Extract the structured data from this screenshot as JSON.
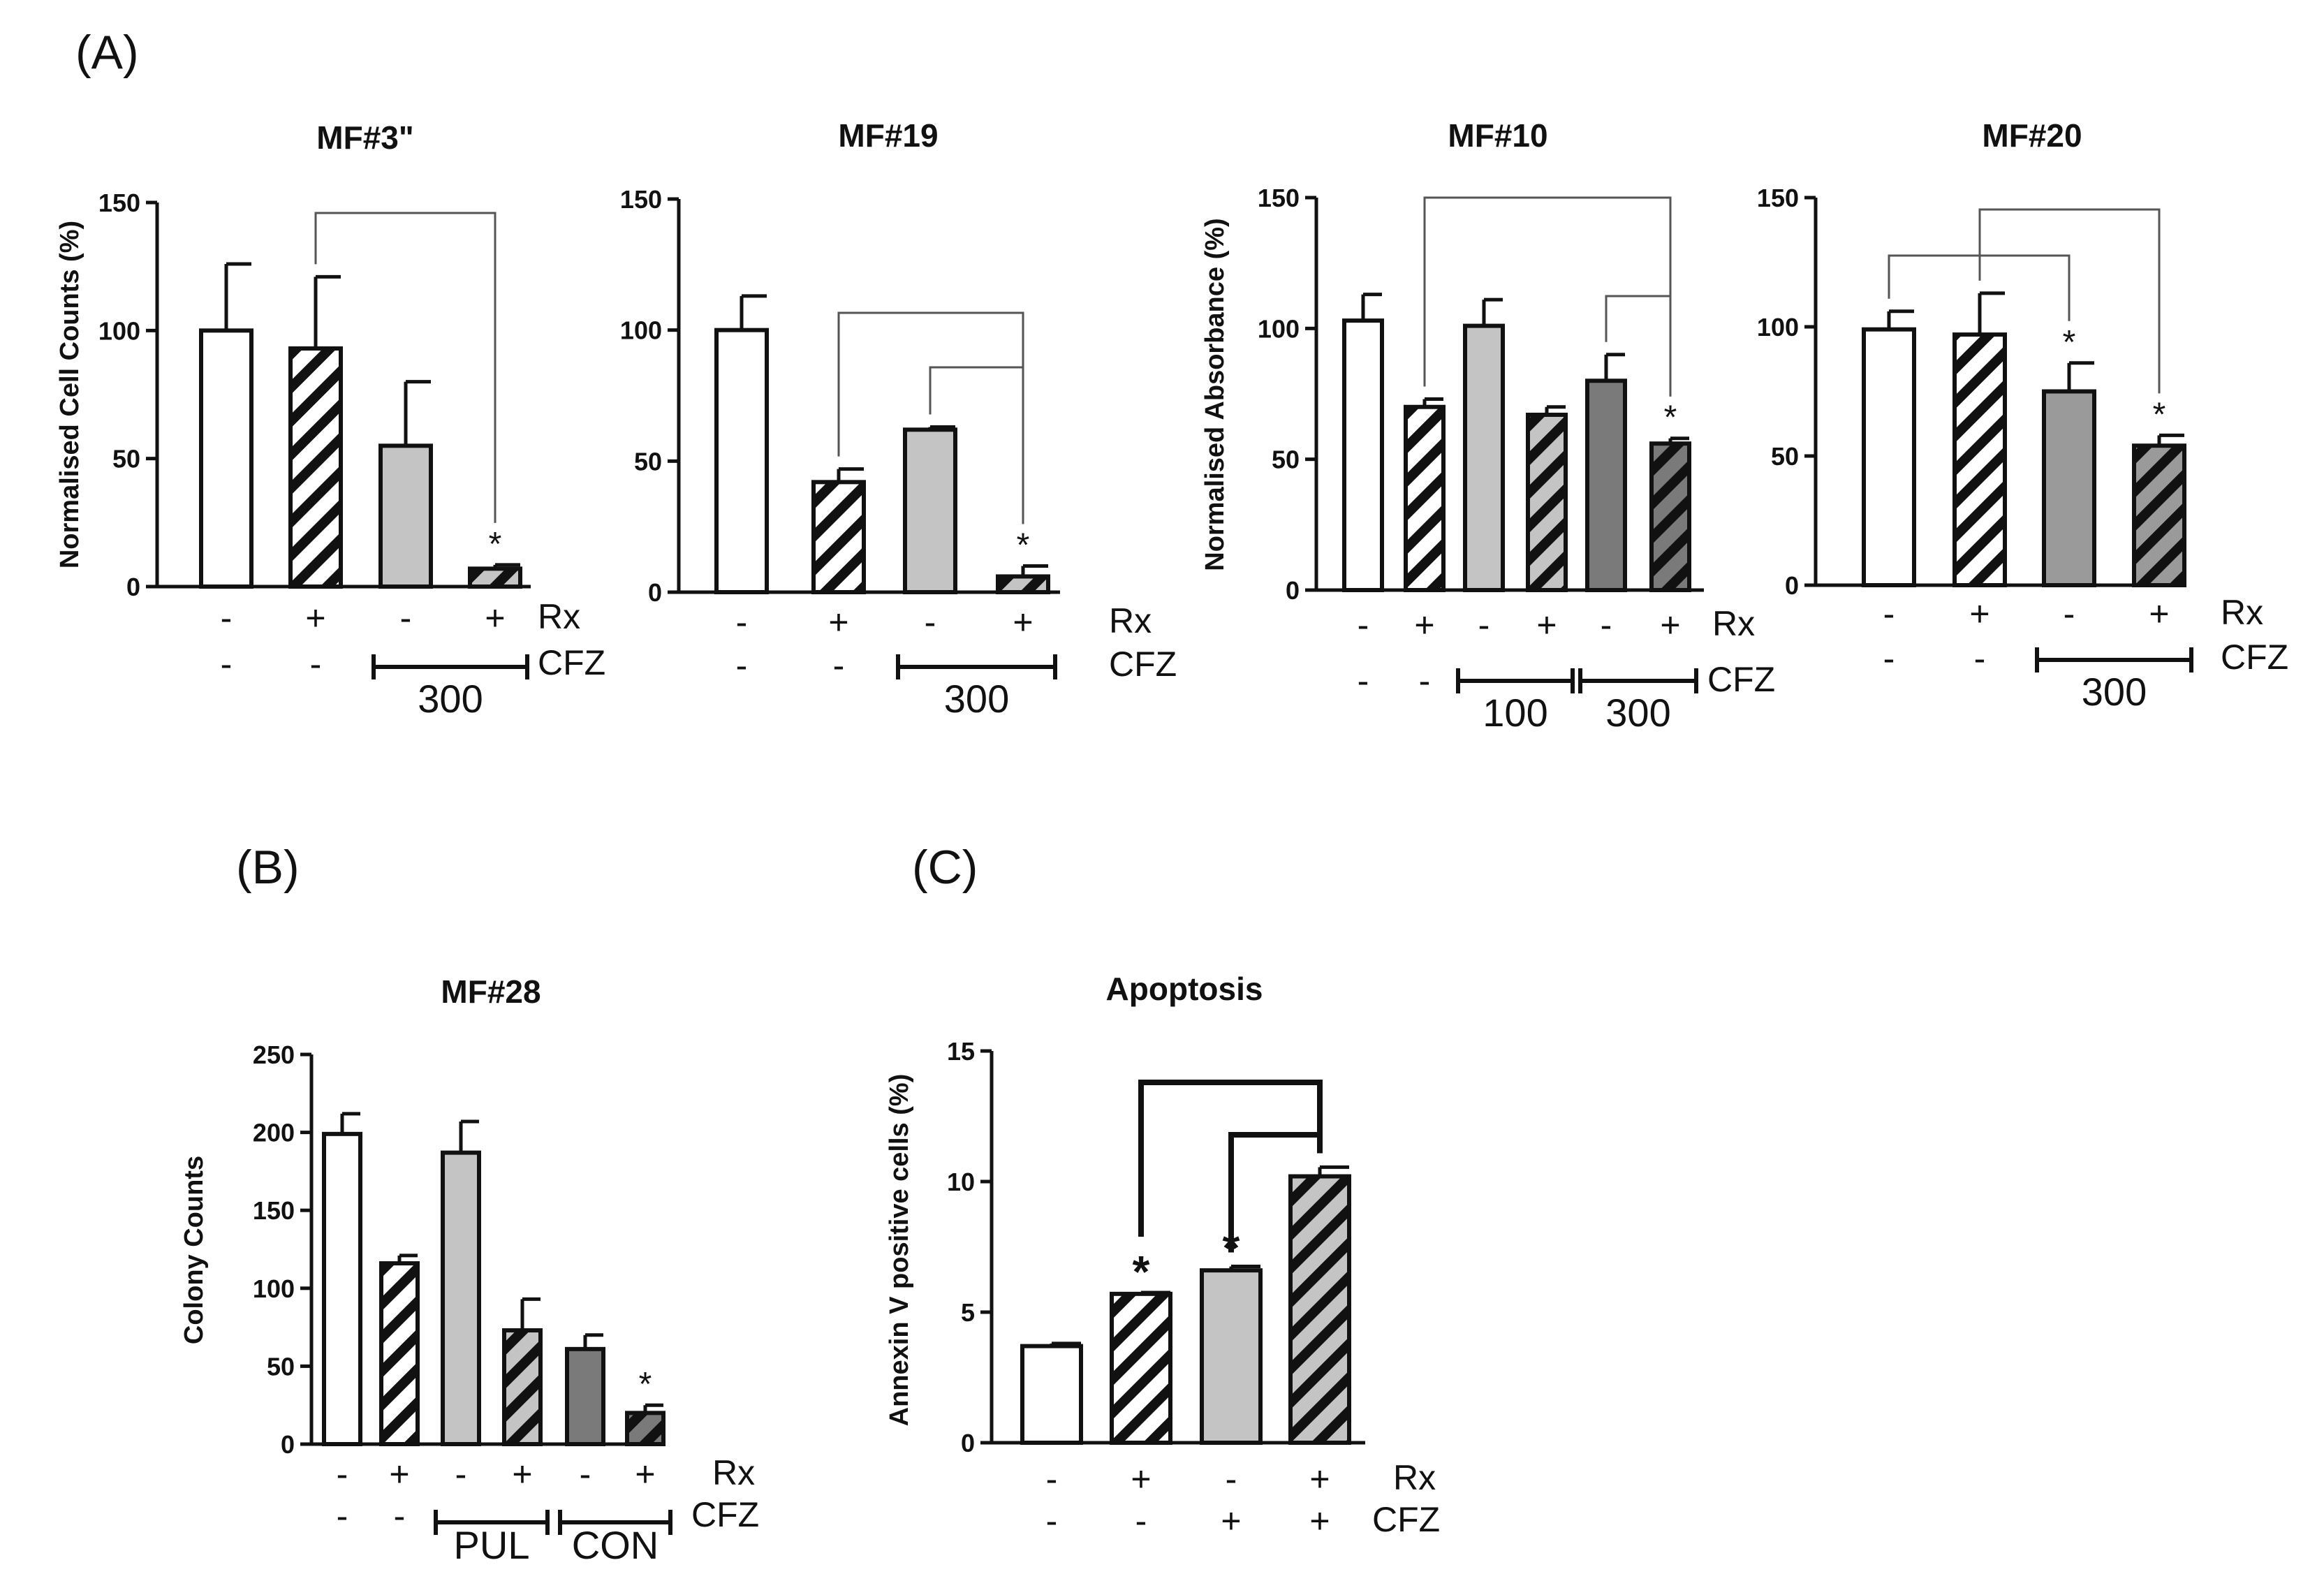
{
  "panels": [
    {
      "label": "(A)"
    },
    {
      "label": "(B)"
    },
    {
      "label": "(C)"
    }
  ],
  "chart_data": [
    {
      "type": "bar",
      "title": "MF#3\"",
      "ylabel": "Normalised Cell Counts (%)",
      "ylim": [
        0,
        150
      ],
      "yticks": [
        "0",
        "50",
        "100",
        "150"
      ],
      "categories": [
        "-/-",
        "+/-",
        "-/300",
        "+/300"
      ],
      "values": [
        100,
        93,
        55,
        7
      ],
      "errors": [
        26,
        28,
        25,
        1.5
      ],
      "fills": [
        "white",
        "hatch-white",
        "gray-light",
        "hatch-light"
      ],
      "row_labels": [
        "Rx",
        "CFZ"
      ],
      "rx": [
        "-",
        "+",
        "-",
        "+"
      ],
      "cfz": [
        "-",
        "-",
        "",
        ""
      ],
      "cfz_groups": [
        {
          "label": "300",
          "from": 2,
          "to": 3
        }
      ],
      "stars": [
        {
          "bar": 3,
          "text": "*"
        }
      ],
      "brackets": [
        {
          "from": 1,
          "to": 3
        }
      ]
    },
    {
      "type": "bar",
      "title": "MF#19",
      "ylabel": "",
      "ylim": [
        0,
        150
      ],
      "yticks": [
        "0",
        "50",
        "100",
        "150"
      ],
      "categories": [
        "-/-",
        "+/-",
        "-/300",
        "+/300"
      ],
      "values": [
        100,
        42,
        62,
        6
      ],
      "errors": [
        13,
        5,
        1,
        4
      ],
      "fills": [
        "white",
        "hatch-white",
        "gray-light",
        "hatch-light"
      ],
      "row_labels": [
        "Rx",
        "CFZ"
      ],
      "rx": [
        "-",
        "+",
        "-",
        "+"
      ],
      "cfz": [
        "-",
        "-",
        "",
        ""
      ],
      "cfz_groups": [
        {
          "label": "300",
          "from": 2,
          "to": 3
        }
      ],
      "stars": [
        {
          "bar": 3,
          "text": "*"
        }
      ],
      "brackets": [
        {
          "from": 1,
          "to": 3
        },
        {
          "from": 2,
          "to": 3
        }
      ]
    },
    {
      "type": "bar",
      "title": "MF#10",
      "ylabel": "Normalised Absorbance (%)",
      "ylim": [
        0,
        150
      ],
      "yticks": [
        "0",
        "50",
        "100",
        "150"
      ],
      "categories": [
        "-/-",
        "+/-",
        "-/100",
        "+/100",
        "-/300",
        "+/300"
      ],
      "values": [
        103,
        70,
        101,
        67,
        80,
        56
      ],
      "errors": [
        10,
        3,
        10,
        3,
        10,
        2
      ],
      "fills": [
        "white",
        "hatch-white",
        "gray-light",
        "hatch-light",
        "gray-dark",
        "hatch-dark"
      ],
      "row_labels": [
        "Rx",
        "CFZ"
      ],
      "rx": [
        "-",
        "+",
        "-",
        "+",
        "-",
        "+"
      ],
      "cfz": [
        "-",
        "-",
        "",
        "",
        "",
        ""
      ],
      "cfz_groups": [
        {
          "label": "100",
          "from": 2,
          "to": 3
        },
        {
          "label": "300",
          "from": 4,
          "to": 5
        }
      ],
      "stars": [
        {
          "bar": 5,
          "text": "*"
        }
      ],
      "brackets": [
        {
          "from": 1,
          "to": 5
        },
        {
          "from": 4,
          "to": 5
        }
      ]
    },
    {
      "type": "bar",
      "title": "MF#20",
      "ylabel": "",
      "ylim": [
        0,
        150
      ],
      "yticks": [
        "0",
        "50",
        "100",
        "150"
      ],
      "categories": [
        "-/-",
        "+/-",
        "-/300",
        "+/300"
      ],
      "values": [
        99,
        97,
        75,
        54
      ],
      "errors": [
        7,
        16,
        11,
        4
      ],
      "fills": [
        "white",
        "hatch-white",
        "gray-mid",
        "hatch-mid"
      ],
      "row_labels": [
        "Rx",
        "CFZ"
      ],
      "rx": [
        "-",
        "+",
        "-",
        "+"
      ],
      "cfz": [
        "-",
        "-",
        "",
        ""
      ],
      "cfz_groups": [
        {
          "label": "300",
          "from": 2,
          "to": 3
        }
      ],
      "stars": [
        {
          "bar": 2,
          "text": "*"
        },
        {
          "bar": 3,
          "text": "*"
        }
      ],
      "brackets": [
        {
          "from": 0,
          "to": 2
        },
        {
          "from": 1,
          "to": 3
        }
      ]
    },
    {
      "type": "bar",
      "title": "MF#28",
      "ylabel": "Colony Counts",
      "ylim": [
        0,
        250
      ],
      "yticks": [
        "0",
        "50",
        "100",
        "150",
        "200",
        "250"
      ],
      "categories": [
        "-/-",
        "+/-",
        "-/PUL",
        "+/PUL",
        "-/CON",
        "+/CON"
      ],
      "values": [
        199,
        116,
        187,
        73,
        61,
        20
      ],
      "errors": [
        13,
        5,
        20,
        20,
        9,
        5
      ],
      "fills": [
        "white",
        "hatch-white",
        "gray-light",
        "hatch-light",
        "gray-dark",
        "hatch-dark"
      ],
      "row_labels": [
        "Rx",
        "CFZ"
      ],
      "rx": [
        "-",
        "+",
        "-",
        "+",
        "-",
        "+"
      ],
      "cfz": [
        "-",
        "-",
        "",
        "",
        "",
        ""
      ],
      "cfz_groups": [
        {
          "label": "PUL",
          "from": 2,
          "to": 3
        },
        {
          "label": "CON",
          "from": 4,
          "to": 5
        }
      ],
      "stars": [
        {
          "bar": 5,
          "text": "*"
        }
      ],
      "brackets": []
    },
    {
      "type": "bar",
      "title": "Apoptosis",
      "ylabel": "Annexin V positive cells (%)",
      "ylim": [
        0,
        15
      ],
      "yticks": [
        "0",
        "5",
        "10",
        "15"
      ],
      "categories": [
        "-/-",
        "+/-",
        "-/+",
        "+/+"
      ],
      "values": [
        3.7,
        5.7,
        6.6,
        10.2
      ],
      "errors": [
        0.1,
        0.05,
        0.15,
        0.35
      ],
      "fills": [
        "white",
        "hatch-white",
        "gray-light",
        "hatch-light"
      ],
      "row_labels": [
        "Rx",
        "CFZ"
      ],
      "rx": [
        "-",
        "+",
        "-",
        "+"
      ],
      "cfz": [
        "-",
        "-",
        "+",
        "+"
      ],
      "cfz_groups": [],
      "stars": [
        {
          "bar": 1,
          "text": "*"
        },
        {
          "bar": 2,
          "text": "*"
        }
      ],
      "brackets": [
        {
          "from": 1,
          "to": 3
        },
        {
          "from": 2,
          "to": 3
        }
      ]
    }
  ]
}
